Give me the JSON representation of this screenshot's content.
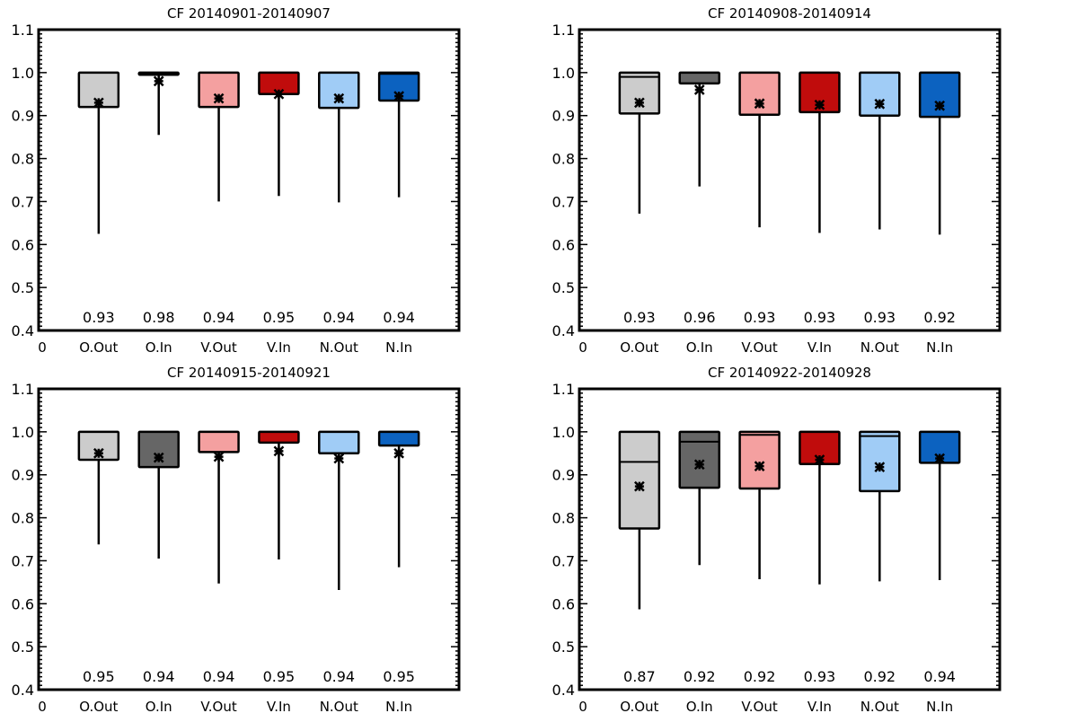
{
  "chart_data": [
    {
      "type": "box",
      "title": "CF 20140901-20140907",
      "categories": [
        "O.Out",
        "O.In",
        "V.Out",
        "V.In",
        "N.Out",
        "N.In"
      ],
      "xtick_labels": [
        "0",
        "O.Out",
        "O.In",
        "V.Out",
        "V.In",
        "N.Out",
        "N.In"
      ],
      "xlim": [
        0,
        7
      ],
      "ylim": [
        0.4,
        1.1
      ],
      "yticks": [
        "0.4",
        "0.5",
        "0.6",
        "0.7",
        "0.8",
        "0.9",
        "1.0",
        "1.1"
      ],
      "colors": [
        "#cccccc",
        "#666666",
        "#f4a0a0",
        "#c00c0c",
        "#a0ccf6",
        "#0c62c0"
      ],
      "boxes": [
        {
          "q1": 0.92,
          "median": 1.0,
          "q3": 1.0,
          "whisker_low": 0.625,
          "mean": 0.93,
          "label": "0.93"
        },
        {
          "q1": 0.995,
          "median": 1.0,
          "q3": 1.0,
          "whisker_low": 0.855,
          "mean": 0.98,
          "label": "0.98"
        },
        {
          "q1": 0.92,
          "median": 1.0,
          "q3": 1.0,
          "whisker_low": 0.7,
          "mean": 0.94,
          "label": "0.94"
        },
        {
          "q1": 0.95,
          "median": 1.0,
          "q3": 1.0,
          "whisker_low": 0.713,
          "mean": 0.95,
          "label": "0.95"
        },
        {
          "q1": 0.918,
          "median": 1.0,
          "q3": 1.0,
          "whisker_low": 0.698,
          "mean": 0.94,
          "label": "0.94"
        },
        {
          "q1": 0.935,
          "median": 0.997,
          "q3": 1.0,
          "whisker_low": 0.71,
          "mean": 0.945,
          "label": "0.94"
        }
      ]
    },
    {
      "type": "box",
      "title": "CF 20140908-20140914",
      "categories": [
        "O.Out",
        "O.In",
        "V.Out",
        "V.In",
        "N.Out",
        "N.In"
      ],
      "xtick_labels": [
        "0",
        "O.Out",
        "O.In",
        "V.Out",
        "V.In",
        "N.Out",
        "N.In"
      ],
      "xlim": [
        0,
        7
      ],
      "ylim": [
        0.4,
        1.1
      ],
      "yticks": [
        "0.4",
        "0.5",
        "0.6",
        "0.7",
        "0.8",
        "0.9",
        "1.0",
        "1.1"
      ],
      "colors": [
        "#cccccc",
        "#666666",
        "#f4a0a0",
        "#c00c0c",
        "#a0ccf6",
        "#0c62c0"
      ],
      "boxes": [
        {
          "q1": 0.905,
          "median": 0.99,
          "q3": 1.0,
          "whisker_low": 0.672,
          "mean": 0.93,
          "label": "0.93"
        },
        {
          "q1": 0.975,
          "median": 1.0,
          "q3": 1.0,
          "whisker_low": 0.735,
          "mean": 0.96,
          "label": "0.96"
        },
        {
          "q1": 0.902,
          "median": 1.0,
          "q3": 1.0,
          "whisker_low": 0.64,
          "mean": 0.928,
          "label": "0.93"
        },
        {
          "q1": 0.908,
          "median": 1.0,
          "q3": 1.0,
          "whisker_low": 0.627,
          "mean": 0.925,
          "label": "0.93"
        },
        {
          "q1": 0.9,
          "median": 1.0,
          "q3": 1.0,
          "whisker_low": 0.635,
          "mean": 0.927,
          "label": "0.93"
        },
        {
          "q1": 0.897,
          "median": 1.0,
          "q3": 1.0,
          "whisker_low": 0.623,
          "mean": 0.923,
          "label": "0.92"
        }
      ]
    },
    {
      "type": "box",
      "title": "CF 20140915-20140921",
      "categories": [
        "O.Out",
        "O.In",
        "V.Out",
        "V.In",
        "N.Out",
        "N.In"
      ],
      "xtick_labels": [
        "0",
        "O.Out",
        "O.In",
        "V.Out",
        "V.In",
        "N.Out",
        "N.In"
      ],
      "xlim": [
        0,
        7
      ],
      "ylim": [
        0.4,
        1.1
      ],
      "yticks": [
        "0.4",
        "0.5",
        "0.6",
        "0.7",
        "0.8",
        "0.9",
        "1.0",
        "1.1"
      ],
      "colors": [
        "#cccccc",
        "#666666",
        "#f4a0a0",
        "#c00c0c",
        "#a0ccf6",
        "#0c62c0"
      ],
      "boxes": [
        {
          "q1": 0.935,
          "median": 1.0,
          "q3": 1.0,
          "whisker_low": 0.738,
          "mean": 0.95,
          "label": "0.95"
        },
        {
          "q1": 0.918,
          "median": 1.0,
          "q3": 1.0,
          "whisker_low": 0.705,
          "mean": 0.94,
          "label": "0.94"
        },
        {
          "q1": 0.953,
          "median": 1.0,
          "q3": 1.0,
          "whisker_low": 0.647,
          "mean": 0.942,
          "label": "0.94"
        },
        {
          "q1": 0.975,
          "median": 1.0,
          "q3": 1.0,
          "whisker_low": 0.703,
          "mean": 0.955,
          "label": "0.95"
        },
        {
          "q1": 0.95,
          "median": 1.0,
          "q3": 1.0,
          "whisker_low": 0.632,
          "mean": 0.938,
          "label": "0.94"
        },
        {
          "q1": 0.968,
          "median": 1.0,
          "q3": 1.0,
          "whisker_low": 0.685,
          "mean": 0.95,
          "label": "0.95"
        }
      ]
    },
    {
      "type": "box",
      "title": "CF 20140922-20140928",
      "categories": [
        "O.Out",
        "O.In",
        "V.Out",
        "V.In",
        "N.Out",
        "N.In"
      ],
      "xtick_labels": [
        "0",
        "O.Out",
        "O.In",
        "V.Out",
        "V.In",
        "N.Out",
        "N.In"
      ],
      "xlim": [
        0,
        7
      ],
      "ylim": [
        0.4,
        1.1
      ],
      "yticks": [
        "0.4",
        "0.5",
        "0.6",
        "0.7",
        "0.8",
        "0.9",
        "1.0",
        "1.1"
      ],
      "colors": [
        "#cccccc",
        "#666666",
        "#f4a0a0",
        "#c00c0c",
        "#a0ccf6",
        "#0c62c0"
      ],
      "boxes": [
        {
          "q1": 0.775,
          "median": 0.93,
          "q3": 1.0,
          "whisker_low": 0.587,
          "mean": 0.873,
          "label": "0.87"
        },
        {
          "q1": 0.87,
          "median": 0.977,
          "q3": 1.0,
          "whisker_low": 0.69,
          "mean": 0.924,
          "label": "0.92"
        },
        {
          "q1": 0.868,
          "median": 0.993,
          "q3": 1.0,
          "whisker_low": 0.657,
          "mean": 0.92,
          "label": "0.92"
        },
        {
          "q1": 0.925,
          "median": 1.0,
          "q3": 1.0,
          "whisker_low": 0.645,
          "mean": 0.935,
          "label": "0.93"
        },
        {
          "q1": 0.862,
          "median": 0.99,
          "q3": 1.0,
          "whisker_low": 0.652,
          "mean": 0.918,
          "label": "0.92"
        },
        {
          "q1": 0.928,
          "median": 1.0,
          "q3": 1.0,
          "whisker_low": 0.655,
          "mean": 0.938,
          "label": "0.94"
        }
      ]
    }
  ]
}
